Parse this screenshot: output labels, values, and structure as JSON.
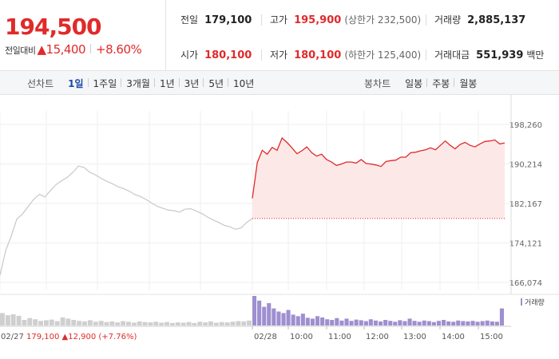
{
  "price": {
    "current": "194,500",
    "change_label": "전일대비",
    "change": "▲15,400",
    "change_pct": "+8.60%"
  },
  "quote": {
    "prev_close_label": "전일",
    "prev_close": "179,100",
    "high_label": "고가",
    "high": "195,900",
    "high_sub": "(상한가 232,500)",
    "volume_label": "거래량",
    "volume": "2,885,137",
    "open_label": "시가",
    "open": "180,100",
    "low_label": "저가",
    "low": "180,100",
    "low_sub": "(하한가 125,400)",
    "turnover_label": "거래대금",
    "turnover": "551,939",
    "turnover_unit": "백만"
  },
  "line_tabs": {
    "label": "선차트",
    "items": [
      "1일",
      "1주일",
      "3개월",
      "1년",
      "3년",
      "5년",
      "10년"
    ],
    "active": 0
  },
  "candle_tabs": {
    "label": "봉차트",
    "items": [
      "일봉",
      "주봉",
      "월봉"
    ]
  },
  "colors": {
    "up": "#e02a2a",
    "prev_day": "#c8c8c8",
    "volume": "#9f8fd0",
    "fill": "#fde8e8"
  },
  "chart_data": {
    "type": "line",
    "y_ticks": [
      "198,260",
      "190,214",
      "182,167",
      "174,121",
      "166,074"
    ],
    "y_range": [
      166074,
      198260
    ],
    "x_ticks": [
      "02/28",
      "10:00",
      "11:00",
      "12:00",
      "13:00",
      "14:00",
      "15:00"
    ],
    "prev_day_footer": {
      "date": "02/27",
      "close": "179,100",
      "change": "▲12,900",
      "change_pct": "(+7.76%)"
    },
    "prev_close_line": 179100,
    "volume_legend": "거래량",
    "series": [
      {
        "day": "02/27",
        "values": [
          167500,
          172500,
          175500,
          179000,
          180000,
          181500,
          183000,
          184000,
          183500,
          184800,
          186000,
          186800,
          187500,
          188500,
          189800,
          189500,
          188500,
          188000,
          187300,
          186700,
          186200,
          185600,
          185200,
          184700,
          184000,
          183600,
          183000,
          182300,
          181600,
          181200,
          180800,
          180700,
          180400,
          181000,
          181100,
          180600,
          180100,
          179400,
          178800,
          178300,
          177700,
          177400,
          176900,
          177200,
          178300,
          179100
        ]
      },
      {
        "day": "02/28",
        "values": [
          183200,
          190500,
          193000,
          192200,
          193600,
          193000,
          195500,
          194600,
          193500,
          192300,
          192900,
          193700,
          192500,
          191800,
          192200,
          191100,
          190600,
          189900,
          190200,
          190600,
          190600,
          190400,
          191100,
          190300,
          190200,
          190000,
          189700,
          190700,
          190900,
          191000,
          191600,
          191600,
          192500,
          192600,
          192900,
          193100,
          193500,
          193100,
          194000,
          194900,
          194000,
          193300,
          194200,
          194600,
          194000,
          193700,
          194300,
          194800,
          194900,
          195100,
          194300,
          194500
        ]
      }
    ],
    "volume": [
      {
        "day": "02/27",
        "values": [
          40,
          33,
          36,
          31,
          18,
          24,
          20,
          15,
          17,
          19,
          14,
          26,
          22,
          18,
          15,
          13,
          17,
          12,
          15,
          11,
          13,
          10,
          14,
          12,
          9,
          13,
          11,
          10,
          12,
          9,
          11,
          8,
          10,
          9,
          11,
          8,
          12,
          10,
          13,
          9,
          11,
          10,
          12,
          14,
          13,
          16
        ]
      },
      {
        "day": "02/28",
        "values": [
          95,
          80,
          60,
          72,
          55,
          45,
          40,
          50,
          35,
          30,
          38,
          25,
          22,
          30,
          26,
          20,
          18,
          24,
          16,
          22,
          15,
          19,
          17,
          14,
          20,
          16,
          13,
          18,
          15,
          12,
          17,
          14,
          22,
          15,
          12,
          16,
          14,
          11,
          15,
          18,
          13,
          12,
          16,
          14,
          13,
          15,
          12,
          14,
          16,
          13,
          12,
          55
        ]
      }
    ]
  }
}
